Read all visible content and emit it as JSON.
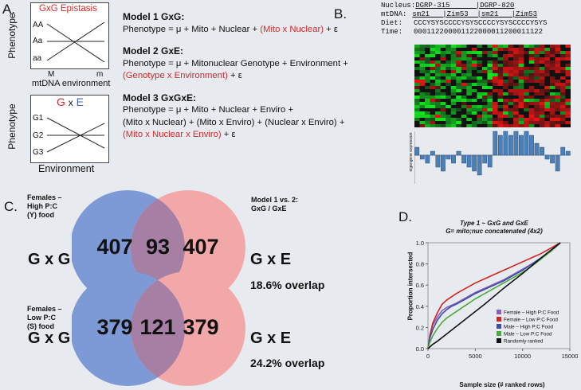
{
  "panel_labels": {
    "a": "A.",
    "b": "B.",
    "c": "C.",
    "d": "D."
  },
  "panel_a": {
    "epistasis_box": {
      "title": "GxG Epistasis",
      "genotypes": [
        "AA",
        "Aa",
        "aa"
      ],
      "x_ticks": [
        "M",
        "m"
      ],
      "x_label": "mtDNA environment",
      "y_label": "Phenotype"
    },
    "gxe_box": {
      "title_g": "G",
      "title_x": "x",
      "title_e": "E",
      "genotypes": [
        "G1",
        "G2",
        "G3"
      ],
      "x_label": "Environment",
      "y_label": "Phenotype"
    },
    "models": [
      {
        "header": "Model 1 GxG:",
        "lines": [
          [
            "Phenotype = μ + Mito + Nuclear + ",
            "(Mito x Nuclear)",
            " + ε"
          ]
        ]
      },
      {
        "header": "Model 2 GxE:",
        "lines": [
          [
            "Phenotype = μ + Mitonuclear Genotype + Environment +",
            "",
            ""
          ],
          [
            "",
            "(Genotype x Environment)",
            " + ε"
          ]
        ]
      },
      {
        "header": "Model 3 GxGxE:",
        "lines": [
          [
            "Phenotype = μ + Mito + Nuclear + Enviro +",
            "",
            ""
          ],
          [
            "(Mito x Nuclear) + (Mito x Enviro) + (Nuclear x Enviro) +",
            "",
            ""
          ],
          [
            "",
            "(Mito x Nuclear x Enviro)",
            "  + ε"
          ]
        ]
      }
    ]
  },
  "panel_b": {
    "rows": [
      {
        "label": "Nucleus:",
        "value": "DGRP-315      |DGRP-820"
      },
      {
        "label": "mtDNA:",
        "value": "sm21   |Zim53  |sm21   |Zim53"
      },
      {
        "label": "Diet:",
        "value": "CCCYSYSCCCCYSYSCCCCYSYSCCCCYSYS"
      },
      {
        "label": "Time:",
        "value": "000112200001122000011200011122"
      }
    ],
    "eigengene_label": "eigengene expression",
    "eigengene_ticks": [
      "6",
      "5",
      "4",
      "3",
      "2",
      "1",
      "0",
      "-1",
      "-2",
      "-3",
      "-4",
      "-5"
    ]
  },
  "panel_c": {
    "top": {
      "side_label": "Females –\nHigh P:C\n(Y) food",
      "right_label": "Model 1 vs. 2:\nGxG / GxE",
      "left_set": "G x G",
      "right_set": "G x E",
      "left_only": "407",
      "overlap": "93",
      "right_only": "407",
      "overlap_pct": "18.6% overlap"
    },
    "bottom": {
      "side_label": "Females –\nLow P:C\n(S) food",
      "left_set": "G x G",
      "right_set": "G x E",
      "left_only": "379",
      "overlap": "121",
      "right_only": "379",
      "overlap_pct": "24.2% overlap"
    },
    "colors": {
      "left": "#7d99d6",
      "right": "#f2a8a8",
      "overlap": "#a67fa4"
    }
  },
  "chart_data": {
    "type": "line",
    "title": "Type 1 ~ GxG and GxE",
    "subtitle": "G= mito;nuc concatenated (4x2)",
    "xlabel": "Sample size (# ranked rows)",
    "ylabel": "Proportion intersected",
    "xlim": [
      0,
      15000
    ],
    "ylim": [
      0,
      1.0
    ],
    "x_ticks": [
      0,
      5000,
      10000,
      15000
    ],
    "y_ticks": [
      0.0,
      0.2,
      0.4,
      0.6,
      0.8,
      1.0
    ],
    "legend_placement": "bottom-right",
    "series": [
      {
        "name": "Female – High P:C Food",
        "color": "#8a5fc0",
        "x": [
          0,
          200,
          500,
          1000,
          1500,
          2000,
          2500,
          3000,
          4000,
          5000,
          6000,
          7000,
          8000,
          9000,
          10000,
          11000,
          12000,
          13000,
          14000
        ],
        "y": [
          0,
          0.13,
          0.22,
          0.3,
          0.36,
          0.39,
          0.41,
          0.43,
          0.48,
          0.53,
          0.57,
          0.61,
          0.65,
          0.7,
          0.75,
          0.8,
          0.86,
          0.92,
          1.0
        ]
      },
      {
        "name": "Female – Low P:C Food",
        "color": "#d12424",
        "x": [
          0,
          200,
          500,
          1000,
          1500,
          2000,
          2500,
          3000,
          4000,
          5000,
          6000,
          7000,
          8000,
          9000,
          10000,
          11000,
          12000,
          13000,
          14000
        ],
        "y": [
          0,
          0.12,
          0.24,
          0.34,
          0.42,
          0.46,
          0.49,
          0.52,
          0.57,
          0.62,
          0.66,
          0.7,
          0.74,
          0.78,
          0.82,
          0.86,
          0.9,
          0.95,
          1.0
        ]
      },
      {
        "name": "Male – High P:C Food",
        "color": "#3b4ea8",
        "x": [
          0,
          200,
          500,
          1000,
          1500,
          2000,
          2500,
          3000,
          4000,
          5000,
          6000,
          7000,
          8000,
          9000,
          10000,
          11000,
          12000,
          13000,
          14000
        ],
        "y": [
          0,
          0.1,
          0.18,
          0.27,
          0.33,
          0.37,
          0.4,
          0.42,
          0.47,
          0.52,
          0.56,
          0.6,
          0.64,
          0.69,
          0.74,
          0.8,
          0.86,
          0.92,
          1.0
        ]
      },
      {
        "name": "Male – Low P:C Food",
        "color": "#4caa3a",
        "x": [
          0,
          200,
          500,
          1000,
          1500,
          2000,
          2500,
          3000,
          4000,
          5000,
          6000,
          7000,
          8000,
          9000,
          10000,
          11000,
          12000,
          13000,
          14000
        ],
        "y": [
          0,
          0.06,
          0.12,
          0.19,
          0.25,
          0.29,
          0.32,
          0.35,
          0.41,
          0.47,
          0.52,
          0.57,
          0.62,
          0.67,
          0.72,
          0.78,
          0.85,
          0.92,
          1.0
        ]
      },
      {
        "name": "Randomly ranked",
        "color": "#111111",
        "x": [
          0,
          500,
          1000,
          2000,
          4000,
          6000,
          8000,
          10000,
          12000,
          14000
        ],
        "y": [
          0,
          0.04,
          0.07,
          0.14,
          0.28,
          0.42,
          0.57,
          0.71,
          0.86,
          1.0
        ]
      }
    ]
  }
}
